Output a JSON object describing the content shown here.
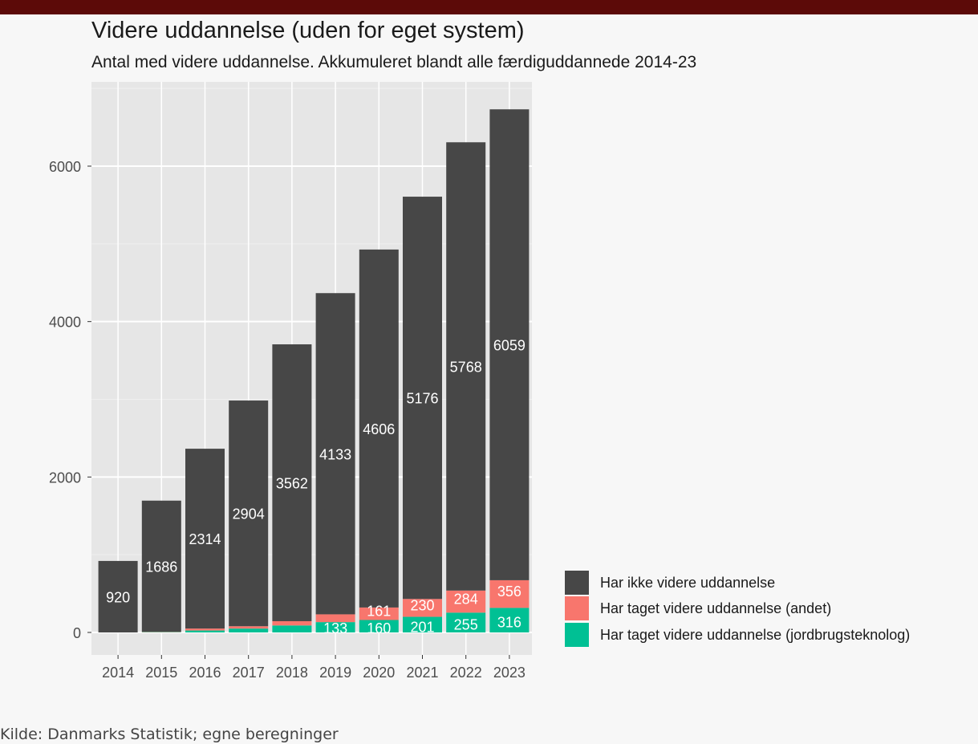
{
  "colors": {
    "top_bar": "#5c0a08",
    "panel": "#e6e6e6",
    "grid_major": "#ffffff",
    "grid_minor": "#efefef",
    "label_text": "#ffffff"
  },
  "source": "Kilde: Danmarks Statistik; egne beregninger",
  "chart_data": {
    "type": "bar",
    "stacked": true,
    "title": "Videre uddannelse (uden for eget system)",
    "subtitle": "Antal med videre uddannelse. Akkumuleret blandt alle færdiguddannede 2014-23",
    "xlabel": "",
    "ylabel": "",
    "ylim": [
      -300,
      7000
    ],
    "yticks": [
      0,
      2000,
      4000,
      6000
    ],
    "grid": true,
    "legend_position": "bottom-right",
    "categories": [
      "2014",
      "2015",
      "2016",
      "2017",
      "2018",
      "2019",
      "2020",
      "2021",
      "2022",
      "2023"
    ],
    "series": [
      {
        "name": "Har taget videre uddannelse (jordbrugsteknolog)",
        "color": "#00c094",
        "values": [
          0,
          5,
          25,
          50,
          90,
          133,
          160,
          201,
          255,
          316
        ],
        "labels": [
          "",
          "",
          "",
          "",
          "",
          "133",
          "160",
          "201",
          "255",
          "316"
        ]
      },
      {
        "name": "Har taget videre uddannelse (andet)",
        "color": "#f8766d",
        "values": [
          0,
          5,
          25,
          30,
          55,
          100,
          161,
          230,
          284,
          356
        ],
        "labels": [
          "",
          "",
          "",
          "",
          "",
          "",
          "161",
          "230",
          "284",
          "356"
        ]
      },
      {
        "name": "Har ikke videre uddannelse",
        "color": "#474747",
        "values": [
          920,
          1686,
          2314,
          2904,
          3562,
          4133,
          4606,
          5176,
          5768,
          6059
        ],
        "labels": [
          "920",
          "1686",
          "2314",
          "2904",
          "3562",
          "4133",
          "4606",
          "5176",
          "5768",
          "6059"
        ]
      }
    ],
    "legend_order": [
      2,
      1,
      0
    ]
  }
}
